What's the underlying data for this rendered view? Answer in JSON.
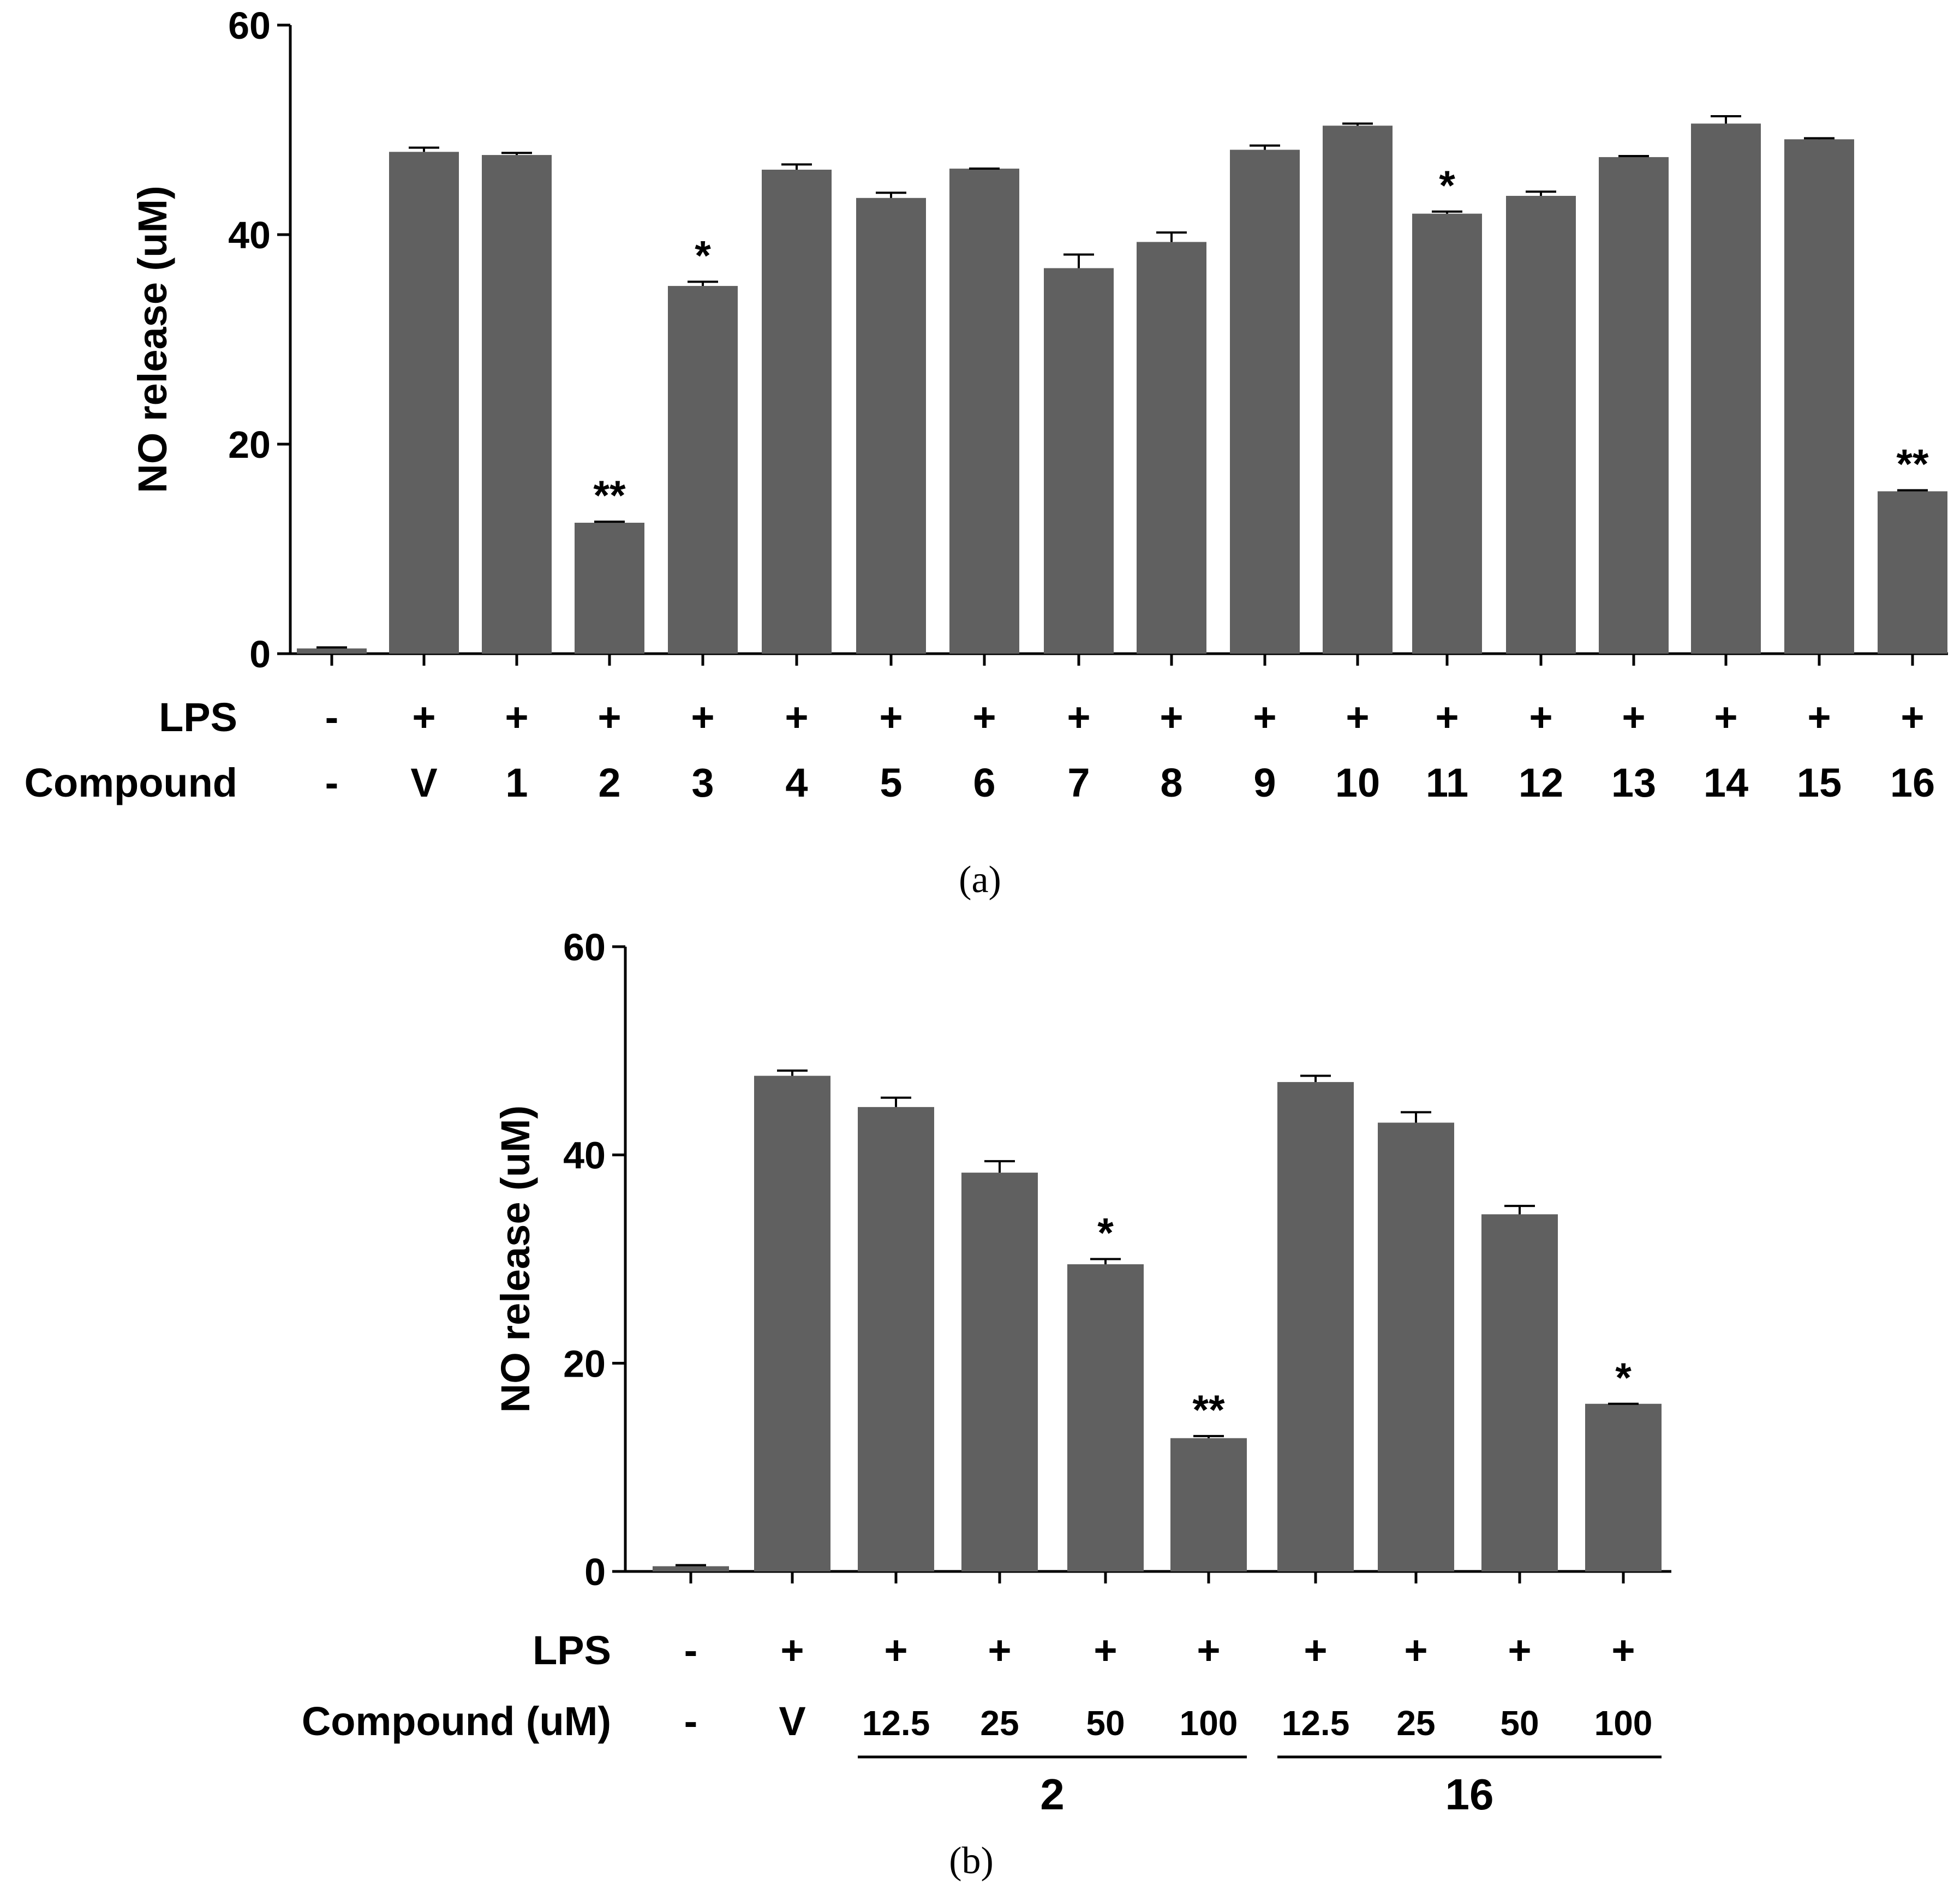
{
  "colors": {
    "bar": "#606060",
    "axis": "#000000",
    "background": "#ffffff"
  },
  "chart_data": [
    {
      "panel_label": "(a)",
      "panel_letter": "a",
      "type": "bar",
      "ylabel": "NO release (uM)",
      "ylim": [
        0,
        60
      ],
      "yticks": [
        0,
        20,
        40,
        60
      ],
      "row_labels": [
        "LPS",
        "Compound"
      ],
      "categories": [
        "-",
        "V",
        "1",
        "2",
        "3",
        "4",
        "5",
        "6",
        "7",
        "8",
        "9",
        "10",
        "11",
        "12",
        "13",
        "14",
        "15",
        "16"
      ],
      "lps": [
        "-",
        "+",
        "+",
        "+",
        "+",
        "+",
        "+",
        "+",
        "+",
        "+",
        "+",
        "+",
        "+",
        "+",
        "+",
        "+",
        "+",
        "+"
      ],
      "values": [
        0.5,
        47.9,
        47.6,
        12.5,
        35.1,
        46.2,
        43.5,
        46.3,
        36.8,
        39.3,
        48.1,
        50.4,
        42.0,
        43.7,
        47.4,
        50.6,
        49.1,
        15.5
      ],
      "errors": [
        0.1,
        0.4,
        0.2,
        0.1,
        0.4,
        0.5,
        0.5,
        0.0,
        1.3,
        0.9,
        0.4,
        0.2,
        0.2,
        0.4,
        0.1,
        0.7,
        0.1,
        0.1
      ],
      "significance": [
        "",
        "",
        "",
        "**",
        "*",
        "",
        "",
        "",
        "",
        "",
        "",
        "",
        "*",
        "",
        "",
        "",
        "",
        "**"
      ]
    },
    {
      "panel_label": "(b)",
      "panel_letter": "b",
      "type": "bar",
      "ylabel": "NO release (uM)",
      "ylim": [
        0,
        60
      ],
      "yticks": [
        0,
        20,
        40,
        60
      ],
      "row_labels": [
        "LPS",
        "Compound (uM)"
      ],
      "categories": [
        "-",
        "V",
        "12.5",
        "25",
        "50",
        "100",
        "12.5",
        "25",
        "50",
        "100"
      ],
      "lps": [
        "-",
        "+",
        "+",
        "+",
        "+",
        "+",
        "+",
        "+",
        "+",
        "+"
      ],
      "values": [
        0.5,
        47.6,
        44.6,
        38.3,
        29.5,
        12.8,
        47.0,
        43.1,
        34.3,
        16.1
      ],
      "errors": [
        0.1,
        0.5,
        0.9,
        1.1,
        0.5,
        0.2,
        0.6,
        1.0,
        0.8,
        0.0
      ],
      "significance": [
        "",
        "",
        "",
        "",
        "*",
        "**",
        "",
        "",
        "",
        "*"
      ],
      "groups": [
        {
          "label": "2",
          "start": 2,
          "end": 5
        },
        {
          "label": "16",
          "start": 6,
          "end": 9
        }
      ]
    }
  ]
}
